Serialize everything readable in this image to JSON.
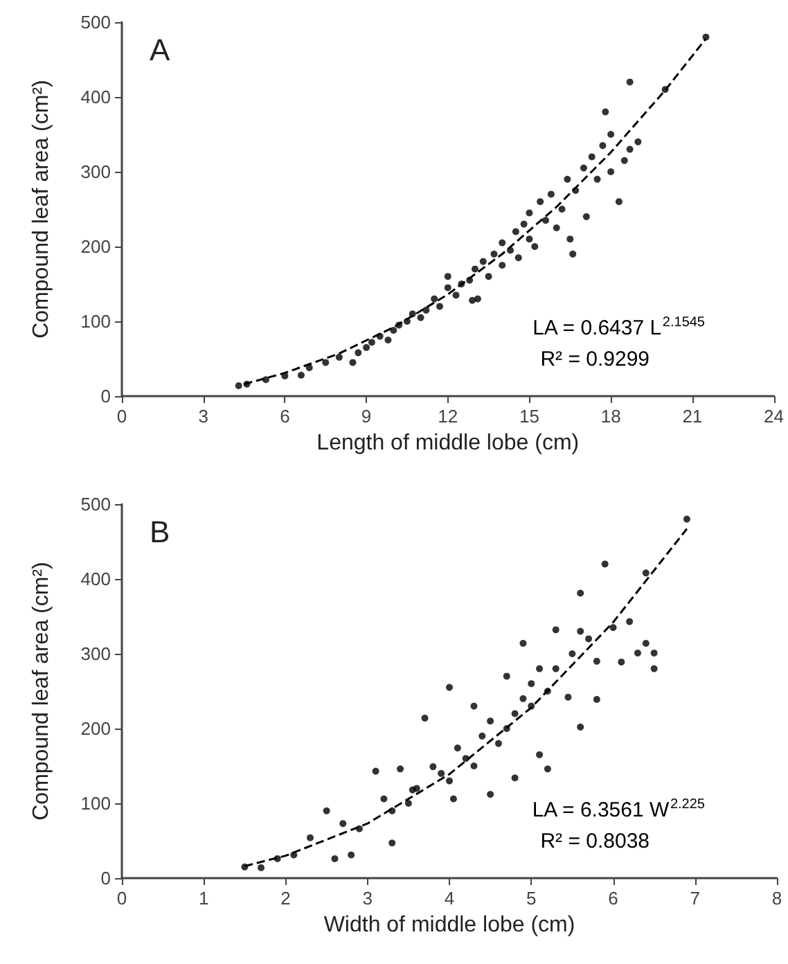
{
  "chart_data": [
    {
      "type": "scatter",
      "title": "A",
      "xlabel": "Length of middle lobe (cm)",
      "ylabel": "Compound leaf area (cm²)",
      "annotations": [
        "LA = 0.6437 L$^{2.1545}$",
        "R² = 0.9299"
      ],
      "xlim": [
        0,
        24
      ],
      "xticks": [
        0,
        3,
        6,
        9,
        12,
        15,
        18,
        21,
        24
      ],
      "ylim": [
        0,
        500
      ],
      "yticks": [
        0,
        100,
        200,
        300,
        400,
        500
      ],
      "grid": false,
      "series": [
        {
          "marker": "circle",
          "color": "#000000",
          "x": [
            4.3,
            4.6,
            5.3,
            6,
            6.6,
            6.9,
            7.5,
            8,
            8.5,
            8.7,
            9,
            9.2,
            9.5,
            9.8,
            10,
            10.2,
            10.5,
            10.7,
            11,
            11.2,
            11.5,
            11.7,
            12,
            12,
            12.3,
            12.5,
            12.8,
            12.9,
            13,
            13.1,
            13.3,
            13.5,
            13.7,
            14,
            14,
            14.3,
            14.5,
            14.6,
            14.8,
            15,
            15,
            15.2,
            15.4,
            15.6,
            15.8,
            16,
            16.2,
            16.4,
            16.5,
            16.6,
            16.7,
            17,
            17.1,
            17.3,
            17.5,
            17.7,
            17.8,
            18,
            18,
            18.3,
            18.5,
            18.7,
            18.7,
            19,
            20,
            21.5
          ],
          "values": [
            14,
            16,
            22,
            27,
            28,
            38,
            45,
            52,
            45,
            58,
            65,
            72,
            80,
            75,
            88,
            95,
            100,
            110,
            105,
            115,
            130,
            120,
            145,
            160,
            135,
            150,
            155,
            128,
            170,
            130,
            180,
            160,
            190,
            175,
            205,
            195,
            220,
            185,
            230,
            210,
            245,
            200,
            260,
            235,
            270,
            225,
            250,
            290,
            210,
            190,
            275,
            305,
            240,
            320,
            290,
            335,
            380,
            300,
            350,
            260,
            315,
            330,
            420,
            340,
            410,
            480
          ]
        },
        {
          "type": "line",
          "marker": "none",
          "line_style": "dashed",
          "color": "#000000",
          "x": [
            4.5,
            6,
            8,
            10,
            12,
            14,
            16,
            18,
            20,
            21.5
          ],
          "values": [
            16,
            31,
            57,
            92,
            136,
            190,
            253,
            326,
            409,
            478
          ]
        }
      ]
    },
    {
      "type": "scatter",
      "title": "B",
      "xlabel": "Width of middle lobe (cm)",
      "ylabel": "Compound leaf area (cm²)",
      "annotations": [
        "LA = 6.3561 W$^{2.225}$",
        "R² = 0.8038"
      ],
      "xlim": [
        0,
        8
      ],
      "xticks": [
        0,
        1,
        2,
        3,
        4,
        5,
        6,
        7,
        8
      ],
      "ylim": [
        0,
        500
      ],
      "yticks": [
        0,
        100,
        200,
        300,
        400,
        500
      ],
      "grid": false,
      "series": [
        {
          "marker": "circle",
          "color": "#000000",
          "x": [
            1.5,
            1.7,
            1.9,
            2.1,
            2.3,
            2.5,
            2.6,
            2.7,
            2.8,
            2.9,
            3.1,
            3.2,
            3.3,
            3.4,
            3.55,
            3.7,
            3.8,
            4.0,
            4.05,
            4.1,
            4.3,
            4.5,
            4.6,
            4.7,
            4.8,
            4.9,
            5.0,
            5.1,
            5.2,
            5.3,
            5.45,
            5.6,
            5.6,
            5.8,
            5.9,
            6.0,
            6.1,
            6.2,
            6.3,
            6.4,
            6.4,
            6.5,
            6.5,
            6.9,
            3.5,
            3.9,
            4.2,
            4.4,
            4.5,
            4.7,
            4.9,
            5.0,
            5.2,
            5.3,
            5.5,
            5.7,
            5.8,
            3.3,
            3.6,
            4.0,
            4.3,
            4.8,
            5.1,
            5.6
          ],
          "values": [
            15,
            14,
            26,
            31,
            54,
            90,
            26,
            73,
            31,
            66,
            143,
            106,
            47,
            146,
            118,
            214,
            149,
            255,
            106,
            174,
            230,
            112,
            180,
            270,
            134,
            314,
            230,
            165,
            146,
            332,
            242,
            202,
            381,
            239,
            420,
            335,
            289,
            343,
            301,
            314,
            408,
            280,
            301,
            480,
            100,
            140,
            160,
            190,
            210,
            200,
            240,
            260,
            250,
            280,
            300,
            320,
            290,
            90,
            120,
            130,
            150,
            220,
            280,
            330
          ]
        },
        {
          "type": "line",
          "marker": "none",
          "line_style": "dashed",
          "color": "#000000",
          "x": [
            1.5,
            2,
            3,
            4,
            5,
            6,
            6.9
          ],
          "values": [
            16,
            30,
            73,
            139,
            228,
            342,
            467
          ]
        }
      ]
    }
  ]
}
